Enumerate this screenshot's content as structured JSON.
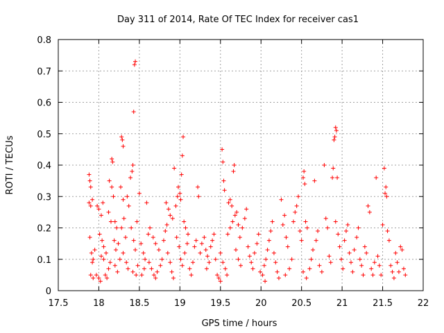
{
  "chart_data": {
    "type": "scatter",
    "title": "Day 311 of 2014, Rate Of TEC Index for receiver cas1",
    "xlabel": "GPS time / hours",
    "ylabel": "ROTI / TECUs",
    "xlim": [
      17.5,
      22
    ],
    "ylim": [
      0,
      0.8
    ],
    "xticks": [
      "17.5",
      "18",
      "18.5",
      "19",
      "19.5",
      "20",
      "20.5",
      "21",
      "21.5",
      "22"
    ],
    "yticks": [
      "0",
      "0.1",
      "0.2",
      "0.3",
      "0.4",
      "0.5",
      "0.6",
      "0.7",
      "0.8"
    ],
    "grid": true,
    "marker": "plus",
    "color": "#ff0000",
    "series": [
      {
        "name": "cas1",
        "points": [
          [
            17.88,
            0.37
          ],
          [
            17.89,
            0.35
          ],
          [
            17.9,
            0.33
          ],
          [
            17.88,
            0.28
          ],
          [
            17.9,
            0.27
          ],
          [
            17.92,
            0.29
          ],
          [
            17.89,
            0.17
          ],
          [
            17.91,
            0.12
          ],
          [
            17.93,
            0.1
          ],
          [
            17.92,
            0.09
          ],
          [
            17.95,
            0.13
          ],
          [
            17.9,
            0.05
          ],
          [
            17.93,
            0.04
          ],
          [
            17.97,
            0.05
          ],
          [
            18.0,
            0.04
          ],
          [
            18.02,
            0.03
          ],
          [
            17.98,
            0.27
          ],
          [
            18.0,
            0.26
          ],
          [
            18.03,
            0.24
          ],
          [
            18.05,
            0.28
          ],
          [
            18.01,
            0.18
          ],
          [
            18.04,
            0.16
          ],
          [
            18.06,
            0.14
          ],
          [
            18.03,
            0.11
          ],
          [
            18.06,
            0.1
          ],
          [
            18.09,
            0.12
          ],
          [
            18.1,
            0.04
          ],
          [
            18.08,
            0.05
          ],
          [
            18.12,
            0.07
          ],
          [
            18.14,
            0.09
          ],
          [
            18.12,
            0.25
          ],
          [
            18.15,
            0.22
          ],
          [
            18.13,
            0.35
          ],
          [
            18.16,
            0.33
          ],
          [
            18.18,
            0.3
          ],
          [
            18.16,
            0.42
          ],
          [
            18.17,
            0.41
          ],
          [
            18.2,
            0.22
          ],
          [
            18.22,
            0.2
          ],
          [
            18.19,
            0.16
          ],
          [
            18.21,
            0.13
          ],
          [
            18.24,
            0.15
          ],
          [
            18.2,
            0.08
          ],
          [
            18.23,
            0.06
          ],
          [
            18.26,
            0.1
          ],
          [
            18.28,
            0.49
          ],
          [
            18.29,
            0.48
          ],
          [
            18.3,
            0.46
          ],
          [
            18.27,
            0.33
          ],
          [
            18.3,
            0.29
          ],
          [
            18.28,
            0.2
          ],
          [
            18.31,
            0.23
          ],
          [
            18.33,
            0.17
          ],
          [
            18.3,
            0.12
          ],
          [
            18.34,
            0.09
          ],
          [
            18.36,
            0.07
          ],
          [
            18.35,
            0.3
          ],
          [
            18.37,
            0.27
          ],
          [
            18.39,
            0.36
          ],
          [
            18.41,
            0.38
          ],
          [
            18.42,
            0.4
          ],
          [
            18.43,
            0.57
          ],
          [
            18.44,
            0.72
          ],
          [
            18.45,
            0.73
          ],
          [
            18.4,
            0.2
          ],
          [
            18.43,
            0.16
          ],
          [
            18.45,
            0.13
          ],
          [
            18.42,
            0.06
          ],
          [
            18.46,
            0.05
          ],
          [
            18.48,
            0.08
          ],
          [
            18.47,
            0.22
          ],
          [
            18.5,
            0.31
          ],
          [
            18.52,
            0.15
          ],
          [
            18.55,
            0.12
          ],
          [
            18.57,
            0.1
          ],
          [
            18.53,
            0.05
          ],
          [
            18.56,
            0.07
          ],
          [
            18.59,
            0.28
          ],
          [
            18.61,
            0.18
          ],
          [
            18.63,
            0.2
          ],
          [
            18.62,
            0.09
          ],
          [
            18.65,
            0.07
          ],
          [
            18.68,
            0.05
          ],
          [
            18.7,
            0.04
          ],
          [
            18.72,
            0.06
          ],
          [
            18.67,
            0.17
          ],
          [
            18.7,
            0.15
          ],
          [
            18.74,
            0.13
          ],
          [
            18.76,
            0.08
          ],
          [
            18.78,
            0.1
          ],
          [
            18.8,
            0.16
          ],
          [
            18.82,
            0.19
          ],
          [
            18.84,
            0.21
          ],
          [
            18.83,
            0.28
          ],
          [
            18.86,
            0.26
          ],
          [
            18.88,
            0.24
          ],
          [
            18.85,
            0.12
          ],
          [
            18.88,
            0.09
          ],
          [
            18.9,
            0.06
          ],
          [
            18.92,
            0.04
          ],
          [
            18.91,
            0.23
          ],
          [
            18.93,
            0.39
          ],
          [
            18.95,
            0.27
          ],
          [
            18.97,
            0.3
          ],
          [
            18.98,
            0.33
          ],
          [
            19.0,
            0.31
          ],
          [
            19.01,
            0.29
          ],
          [
            19.02,
            0.37
          ],
          [
            19.03,
            0.43
          ],
          [
            19.04,
            0.49
          ],
          [
            18.96,
            0.17
          ],
          [
            18.99,
            0.14
          ],
          [
            19.01,
            0.1
          ],
          [
            19.03,
            0.08
          ],
          [
            19.05,
            0.22
          ],
          [
            19.07,
            0.2
          ],
          [
            19.06,
            0.12
          ],
          [
            19.09,
            0.15
          ],
          [
            19.1,
            0.18
          ],
          [
            19.12,
            0.07
          ],
          [
            19.14,
            0.05
          ],
          [
            19.16,
            0.09
          ],
          [
            19.18,
            0.14
          ],
          [
            19.2,
            0.16
          ],
          [
            19.22,
            0.33
          ],
          [
            19.23,
            0.3
          ],
          [
            19.25,
            0.12
          ],
          [
            19.27,
            0.15
          ],
          [
            19.3,
            0.17
          ],
          [
            19.32,
            0.13
          ],
          [
            19.34,
            0.11
          ],
          [
            19.36,
            0.09
          ],
          [
            19.33,
            0.07
          ],
          [
            19.38,
            0.14
          ],
          [
            19.4,
            0.16
          ],
          [
            19.42,
            0.18
          ],
          [
            19.44,
            0.1
          ],
          [
            19.46,
            0.05
          ],
          [
            19.48,
            0.04
          ],
          [
            19.5,
            0.03
          ],
          [
            19.52,
            0.45
          ],
          [
            19.53,
            0.41
          ],
          [
            19.54,
            0.35
          ],
          [
            19.55,
            0.32
          ],
          [
            19.5,
            0.12
          ],
          [
            19.53,
            0.09
          ],
          [
            19.56,
            0.07
          ],
          [
            19.58,
            0.05
          ],
          [
            19.6,
            0.28
          ],
          [
            19.62,
            0.29
          ],
          [
            19.64,
            0.27
          ],
          [
            19.59,
            0.18
          ],
          [
            19.62,
            0.2
          ],
          [
            19.65,
            0.22
          ],
          [
            19.66,
            0.38
          ],
          [
            19.67,
            0.4
          ],
          [
            19.68,
            0.24
          ],
          [
            19.7,
            0.25
          ],
          [
            19.72,
            0.21
          ],
          [
            19.69,
            0.13
          ],
          [
            19.72,
            0.1
          ],
          [
            19.75,
            0.08
          ],
          [
            19.74,
            0.17
          ],
          [
            19.77,
            0.2
          ],
          [
            19.8,
            0.23
          ],
          [
            19.82,
            0.26
          ],
          [
            19.84,
            0.14
          ],
          [
            19.86,
            0.11
          ],
          [
            19.88,
            0.09
          ],
          [
            19.9,
            0.07
          ],
          [
            19.92,
            0.12
          ],
          [
            19.95,
            0.15
          ],
          [
            19.97,
            0.18
          ],
          [
            19.99,
            0.06
          ],
          [
            20.02,
            0.05
          ],
          [
            20.04,
            0.08
          ],
          [
            20.06,
            0.1
          ],
          [
            20.08,
            0.13
          ],
          [
            20.1,
            0.16
          ],
          [
            20.05,
            0.03
          ],
          [
            20.12,
            0.19
          ],
          [
            20.14,
            0.22
          ],
          [
            20.16,
            0.12
          ],
          [
            20.18,
            0.09
          ],
          [
            20.2,
            0.06
          ],
          [
            20.22,
            0.04
          ],
          [
            20.25,
            0.29
          ],
          [
            20.27,
            0.21
          ],
          [
            20.29,
            0.24
          ],
          [
            20.31,
            0.17
          ],
          [
            20.33,
            0.14
          ],
          [
            20.3,
            0.05
          ],
          [
            20.35,
            0.07
          ],
          [
            20.38,
            0.1
          ],
          [
            20.4,
            0.22
          ],
          [
            20.42,
            0.25
          ],
          [
            20.44,
            0.27
          ],
          [
            20.46,
            0.3
          ],
          [
            20.48,
            0.19
          ],
          [
            20.5,
            0.16
          ],
          [
            20.52,
            0.36
          ],
          [
            20.53,
            0.38
          ],
          [
            20.54,
            0.34
          ],
          [
            20.55,
            0.22
          ],
          [
            20.57,
            0.2
          ],
          [
            20.52,
            0.06
          ],
          [
            20.56,
            0.04
          ],
          [
            20.6,
            0.07
          ],
          [
            20.62,
            0.1
          ],
          [
            20.64,
            0.13
          ],
          [
            20.66,
            0.35
          ],
          [
            20.68,
            0.16
          ],
          [
            20.7,
            0.19
          ],
          [
            20.72,
            0.08
          ],
          [
            20.75,
            0.06
          ],
          [
            20.78,
            0.4
          ],
          [
            20.8,
            0.23
          ],
          [
            20.82,
            0.2
          ],
          [
            20.84,
            0.11
          ],
          [
            20.86,
            0.09
          ],
          [
            20.88,
            0.36
          ],
          [
            20.89,
            0.39
          ],
          [
            20.9,
            0.48
          ],
          [
            20.91,
            0.49
          ],
          [
            20.92,
            0.52
          ],
          [
            20.93,
            0.51
          ],
          [
            20.94,
            0.36
          ],
          [
            20.92,
            0.22
          ],
          [
            20.95,
            0.18
          ],
          [
            20.97,
            0.14
          ],
          [
            20.99,
            0.1
          ],
          [
            21.01,
            0.07
          ],
          [
            21.03,
            0.16
          ],
          [
            21.05,
            0.19
          ],
          [
            21.07,
            0.21
          ],
          [
            21.09,
            0.12
          ],
          [
            21.11,
            0.09
          ],
          [
            21.13,
            0.06
          ],
          [
            21.15,
            0.13
          ],
          [
            21.18,
            0.17
          ],
          [
            21.2,
            0.2
          ],
          [
            21.22,
            0.1
          ],
          [
            21.24,
            0.08
          ],
          [
            21.26,
            0.05
          ],
          [
            21.28,
            0.14
          ],
          [
            21.3,
            0.12
          ],
          [
            21.32,
            0.27
          ],
          [
            21.34,
            0.25
          ],
          [
            21.36,
            0.07
          ],
          [
            21.38,
            0.05
          ],
          [
            21.4,
            0.09
          ],
          [
            21.42,
            0.36
          ],
          [
            21.44,
            0.11
          ],
          [
            21.46,
            0.08
          ],
          [
            21.48,
            0.05
          ],
          [
            21.5,
            0.21
          ],
          [
            21.52,
            0.39
          ],
          [
            21.53,
            0.31
          ],
          [
            21.54,
            0.33
          ],
          [
            21.55,
            0.3
          ],
          [
            21.56,
            0.19
          ],
          [
            21.58,
            0.16
          ],
          [
            21.6,
            0.08
          ],
          [
            21.62,
            0.06
          ],
          [
            21.64,
            0.04
          ],
          [
            21.66,
            0.12
          ],
          [
            21.68,
            0.09
          ],
          [
            21.7,
            0.06
          ],
          [
            21.72,
            0.14
          ],
          [
            21.74,
            0.13
          ],
          [
            21.76,
            0.07
          ],
          [
            21.78,
            0.05
          ]
        ]
      }
    ]
  }
}
